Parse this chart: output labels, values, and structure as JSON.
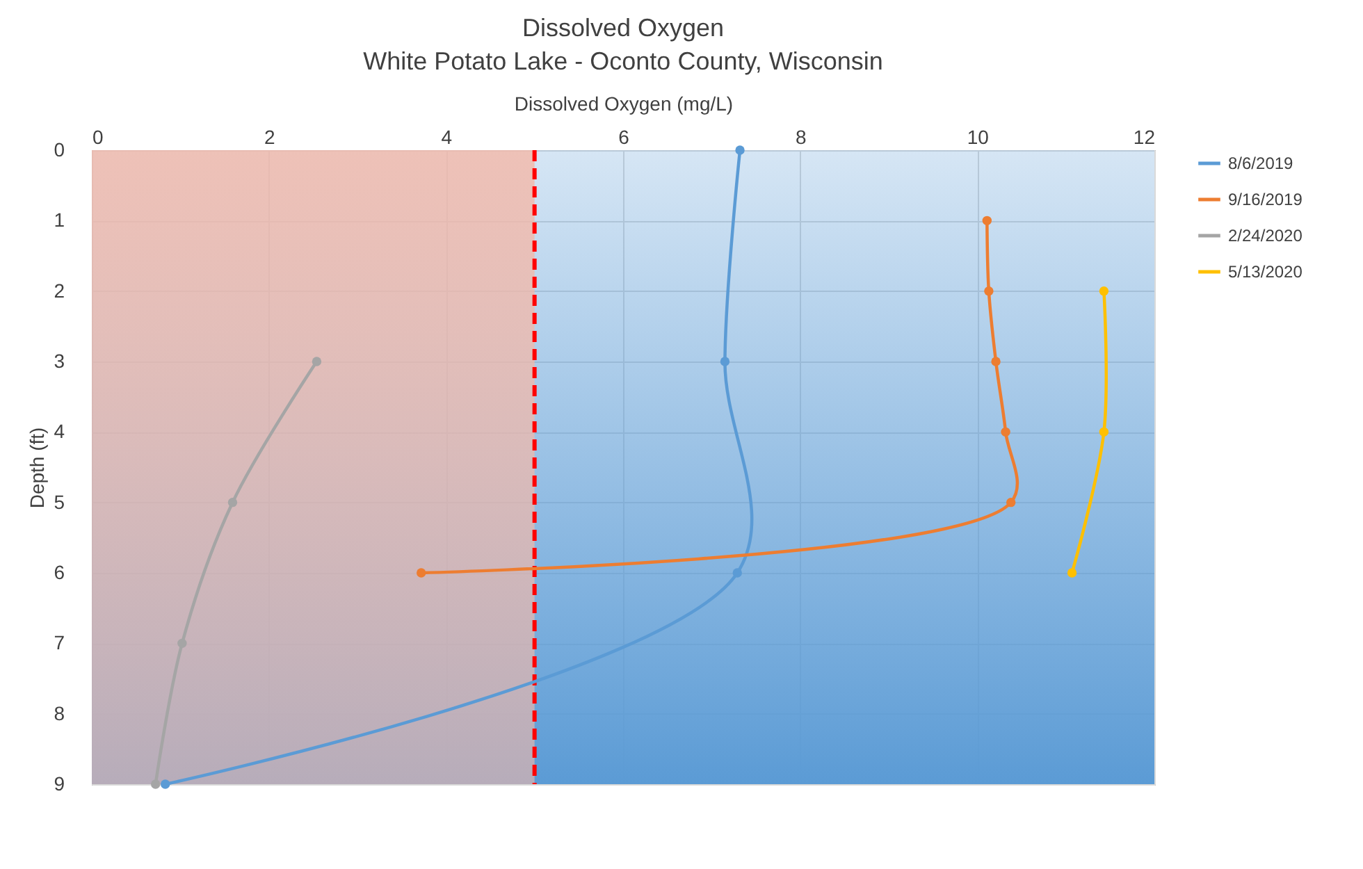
{
  "chart_data": {
    "type": "line",
    "title": "Dissolved Oxygen",
    "subtitle": "White Potato Lake - Oconto County, Wisconsin",
    "xlabel": "Dissolved Oxygen (mg/L)",
    "ylabel": "Depth (ft)",
    "xlim": [
      0,
      12
    ],
    "xticks": [
      0,
      2,
      4,
      6,
      8,
      10,
      12
    ],
    "ylim": [
      9,
      0
    ],
    "yticks": [
      0,
      1,
      2,
      3,
      4,
      5,
      6,
      7,
      8,
      9
    ],
    "grid": true,
    "legend": "right",
    "marker": "circle",
    "line_style": "solid",
    "bands": [
      {
        "axis": "x",
        "from": 0,
        "to": 12,
        "color": "#5b9bd5"
      },
      {
        "axis": "x",
        "from": 0,
        "to": 5,
        "color": "#f4b8a8"
      }
    ],
    "ref_lines": [
      {
        "axis": "x",
        "value": 5,
        "color": "#ff0000",
        "line_style": "dashed"
      }
    ],
    "series": [
      {
        "name": "8/6/2019",
        "color": "#5b9bd5",
        "x": [
          7.32,
          7.15,
          7.29,
          0.83
        ],
        "values": [
          0,
          3,
          6,
          9
        ]
      },
      {
        "name": "9/16/2019",
        "color": "#ed7d31",
        "x": [
          10.11,
          10.13,
          10.21,
          10.32,
          10.38,
          3.72
        ],
        "values": [
          1,
          2,
          3,
          4,
          5,
          6
        ]
      },
      {
        "name": "2/24/2020",
        "color": "#a5a5a5",
        "x": [
          2.54,
          1.59,
          1.02,
          0.72
        ],
        "values": [
          3,
          5,
          7,
          9
        ]
      },
      {
        "name": "5/13/2020",
        "color": "#ffc000",
        "x": [
          11.43,
          11.43,
          11.07
        ],
        "values": [
          2,
          4,
          6
        ]
      }
    ]
  }
}
